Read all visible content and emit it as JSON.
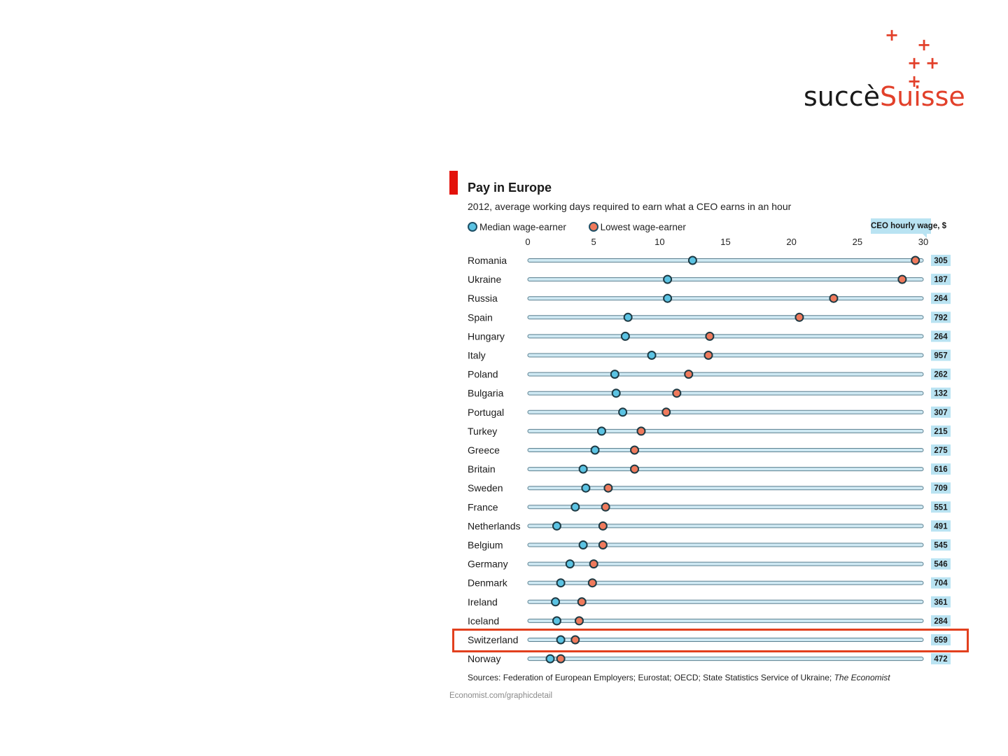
{
  "logo": {
    "text_dark": "succè",
    "text_accent": "Suisse",
    "accent_color": "#e2402a",
    "icon": "swiss-cross-plus-icons"
  },
  "highlight": {
    "country": "Switzerland",
    "color": "#e2401e"
  },
  "chart_data": {
    "type": "scatter",
    "title": "Pay in Europe",
    "subtitle": "2012, average working days required to earn what a CEO earns in an hour",
    "legend_position": "top-left",
    "grid": false,
    "xlim": [
      0,
      30
    ],
    "x_ticks": [
      "0",
      "5",
      "10",
      "15",
      "20",
      "25",
      "30"
    ],
    "side_label": "CEO hourly wage, $",
    "categories": [
      "Romania",
      "Ukraine",
      "Russia",
      "Spain",
      "Hungary",
      "Italy",
      "Poland",
      "Bulgaria",
      "Portugal",
      "Turkey",
      "Greece",
      "Britain",
      "Sweden",
      "France",
      "Netherlands",
      "Belgium",
      "Germany",
      "Denmark",
      "Ireland",
      "Iceland",
      "Switzerland",
      "Norway"
    ],
    "series": [
      {
        "name": "Median wage-earner",
        "color": "#5bc3e3",
        "values": [
          12.5,
          10.6,
          10.6,
          7.6,
          7.4,
          9.4,
          6.6,
          6.7,
          7.2,
          5.6,
          5.1,
          4.2,
          4.4,
          3.6,
          2.2,
          4.2,
          3.2,
          2.5,
          2.1,
          2.2,
          2.5,
          1.7
        ]
      },
      {
        "name": "Lowest wage-earner",
        "color": "#ef7a5c",
        "values": [
          29.4,
          28.4,
          23.2,
          20.6,
          13.8,
          13.7,
          12.2,
          11.3,
          10.5,
          8.6,
          8.1,
          8.1,
          6.1,
          5.9,
          5.7,
          5.7,
          5.0,
          4.9,
          4.1,
          3.9,
          3.6,
          2.5
        ]
      }
    ],
    "ceo_hourly_wage": [
      305,
      187,
      264,
      792,
      264,
      957,
      262,
      132,
      307,
      215,
      275,
      616,
      709,
      551,
      491,
      545,
      546,
      704,
      361,
      284,
      659,
      472
    ],
    "sources_prefix": "Sources: Federation of European Employers; Eurostat; OECD; State Statistics Service of Ukraine;",
    "sources_italic": "The Economist",
    "credit": "Economist.com/graphicdetail"
  }
}
